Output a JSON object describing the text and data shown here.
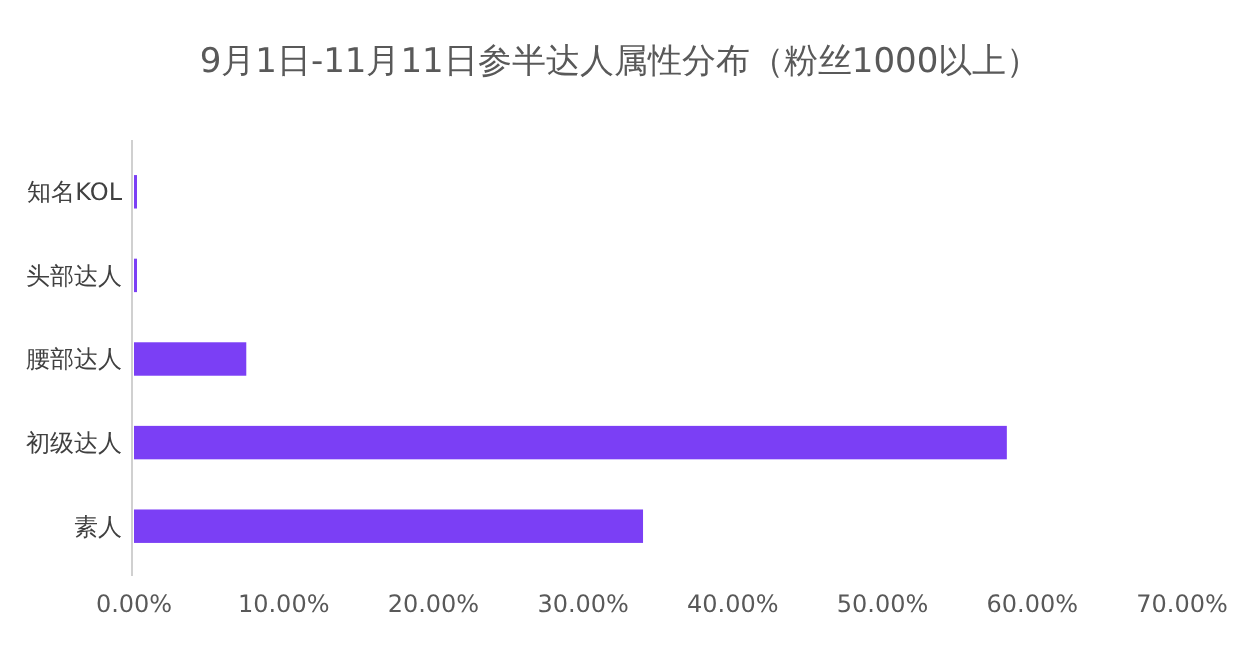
{
  "chart_data": {
    "type": "bar",
    "orientation": "horizontal",
    "title": "9月1日-11月11日参半达人属性分布（粉丝1000以上）",
    "categories": [
      "知名KOL",
      "头部达人",
      "腰部达人",
      "初级达人",
      "素人"
    ],
    "values": [
      0.2,
      0.2,
      7.5,
      58.3,
      34.0
    ],
    "color": "#7b3ff5",
    "xlim": [
      0,
      70
    ],
    "xticks": [
      {
        "value": 0,
        "label": "0.00%"
      },
      {
        "value": 10,
        "label": "10.00%"
      },
      {
        "value": 20,
        "label": "20.00%"
      },
      {
        "value": 30,
        "label": "30.00%"
      },
      {
        "value": 40,
        "label": "40.00%"
      },
      {
        "value": 50,
        "label": "50.00%"
      },
      {
        "value": 60,
        "label": "60.00%"
      },
      {
        "value": 70,
        "label": "70.00%"
      }
    ],
    "grid": false
  }
}
